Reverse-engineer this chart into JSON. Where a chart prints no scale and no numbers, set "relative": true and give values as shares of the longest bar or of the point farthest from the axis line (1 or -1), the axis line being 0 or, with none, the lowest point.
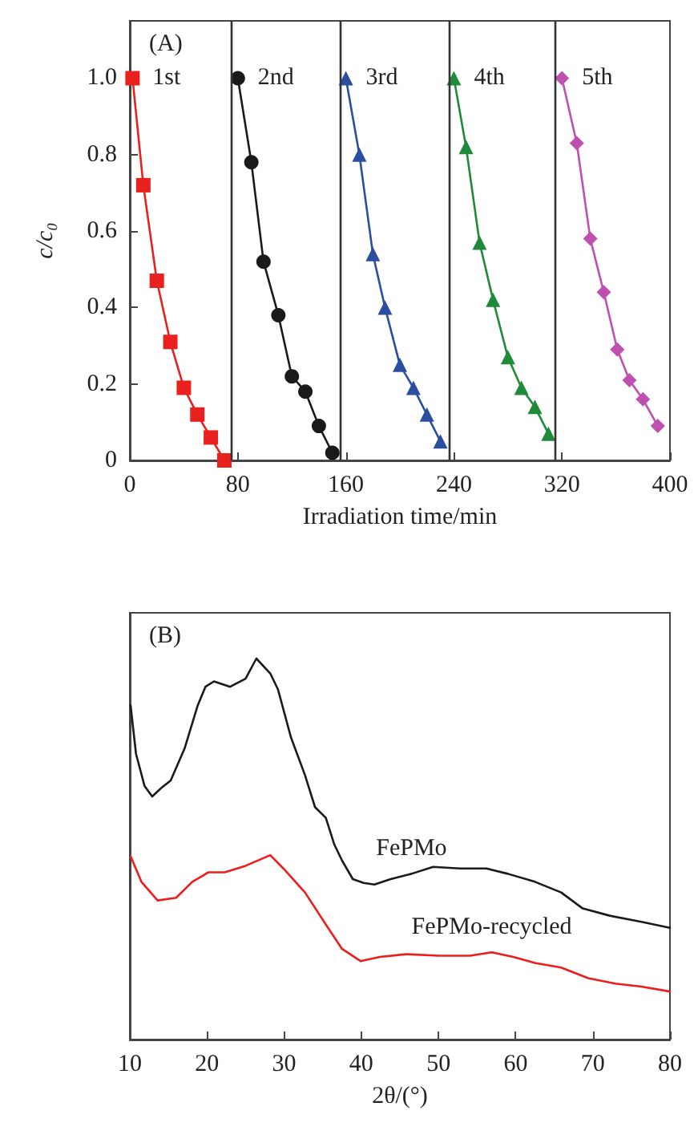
{
  "chart_data": [
    {
      "type": "line",
      "title": "(A)",
      "xlabel": "Irradiation time/min",
      "ylabel": "c/c₀",
      "xlim": [
        0,
        400
      ],
      "xticks": [
        0,
        80,
        160,
        240,
        320,
        400
      ],
      "ylim": [
        0,
        1.15
      ],
      "yticks": [
        0,
        0.2,
        0.4,
        0.6,
        0.8,
        {
          "value": 1,
          "label": "1.0"
        }
      ],
      "grid": false,
      "legend": false,
      "line_style": "solid",
      "series": [
        {
          "name": "1st",
          "color": "#e8201e",
          "marker": "square",
          "x": [
            2,
            10,
            20,
            30,
            40,
            50,
            60,
            70
          ],
          "values": [
            1.0,
            0.72,
            0.47,
            0.31,
            0.19,
            0.12,
            0.06,
            0.0
          ]
        },
        {
          "name": "2nd",
          "color": "#1a1a1a",
          "marker": "circle",
          "x": [
            80,
            90,
            99,
            110,
            120,
            130,
            140,
            150
          ],
          "values": [
            1.0,
            0.78,
            0.52,
            0.38,
            0.22,
            0.18,
            0.09,
            0.02
          ]
        },
        {
          "name": "3rd",
          "color": "#2b4ea0",
          "marker": "triangle",
          "x": [
            160,
            170,
            180,
            189,
            200,
            210,
            220,
            230
          ],
          "values": [
            1.0,
            0.8,
            0.54,
            0.4,
            0.25,
            0.19,
            0.12,
            0.05
          ]
        },
        {
          "name": "4th",
          "color": "#1f8a3a",
          "marker": "triangle",
          "x": [
            240,
            249,
            259,
            269,
            280,
            290,
            300,
            310
          ],
          "values": [
            1.0,
            0.82,
            0.57,
            0.42,
            0.27,
            0.19,
            0.14,
            0.07
          ]
        },
        {
          "name": "5th",
          "color": "#c050b0",
          "marker": "diamond",
          "x": [
            320,
            331,
            341,
            351,
            361,
            370,
            380,
            391
          ],
          "values": [
            1.0,
            0.83,
            0.58,
            0.44,
            0.29,
            0.21,
            0.16,
            0.09
          ]
        }
      ],
      "ref_lines": [
        {
          "axis": "x",
          "value": 75,
          "color": "#333333"
        },
        {
          "axis": "x",
          "value": 156,
          "color": "#333333"
        },
        {
          "axis": "x",
          "value": 237,
          "color": "#333333"
        },
        {
          "axis": "x",
          "value": 315,
          "color": "#333333"
        }
      ]
    },
    {
      "type": "line",
      "title": "(B)",
      "xlabel": "2θ/(°)",
      "relative": true,
      "xlim": [
        10,
        80
      ],
      "xticks": [
        10,
        20,
        30,
        40,
        50,
        60,
        70,
        80
      ],
      "grid": false,
      "legend": false,
      "marker": "none",
      "line_style": "solid",
      "series": [
        {
          "name": "FePMo",
          "color": "#1a1a1a",
          "x": [
            10.1,
            10.8,
            11.9,
            12.9,
            14.0,
            15.3,
            17.1,
            18.8,
            19.8,
            20.9,
            23.0,
            25.0,
            26.4,
            28.2,
            29.2,
            30.9,
            32.7,
            34.0,
            35.4,
            36.5,
            37.5,
            38.9,
            40.3,
            41.7,
            43.8,
            46.5,
            49.3,
            52.8,
            56.2,
            59.0,
            62.5,
            65.9,
            68.7,
            72.2,
            76.3,
            80
          ],
          "values": [
            0.877,
            0.75,
            0.666,
            0.638,
            0.659,
            0.68,
            0.764,
            0.877,
            0.926,
            0.94,
            0.926,
            0.947,
            1.0,
            0.961,
            0.919,
            0.792,
            0.694,
            0.61,
            0.582,
            0.512,
            0.47,
            0.421,
            0.411,
            0.407,
            0.421,
            0.435,
            0.453,
            0.449,
            0.449,
            0.435,
            0.414,
            0.386,
            0.344,
            0.325,
            0.309,
            0.293
          ]
        },
        {
          "name": "FePMo-recycled",
          "color": "#ee1c1c",
          "x": [
            10.1,
            11.5,
            13.6,
            16.0,
            18.1,
            20.2,
            22.3,
            25.0,
            28.2,
            29.9,
            32.7,
            35.4,
            37.5,
            39.9,
            42.4,
            45.8,
            50.0,
            54.1,
            56.9,
            59.7,
            62.5,
            65.9,
            69.4,
            72.9,
            76.3,
            80
          ],
          "values": [
            0.481,
            0.414,
            0.365,
            0.372,
            0.414,
            0.439,
            0.439,
            0.456,
            0.484,
            0.449,
            0.386,
            0.302,
            0.238,
            0.206,
            0.217,
            0.224,
            0.22,
            0.22,
            0.229,
            0.217,
            0.201,
            0.189,
            0.161,
            0.147,
            0.139,
            0.126
          ]
        }
      ]
    }
  ]
}
